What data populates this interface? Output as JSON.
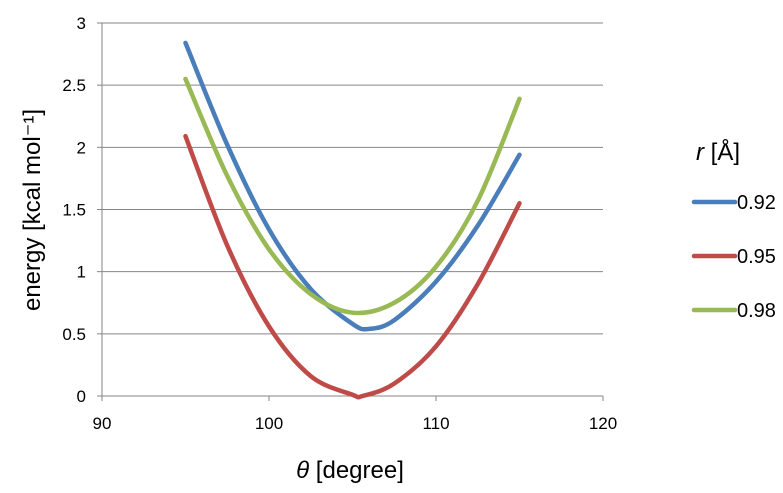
{
  "chart_data": {
    "type": "line",
    "title": "",
    "xlabel": {
      "symbol": "θ",
      "text": " [degree]"
    },
    "ylabel": "energy [kcal mol⁻¹]",
    "xlim": [
      90,
      120
    ],
    "ylim": [
      0,
      3
    ],
    "x_ticks": [
      90,
      100,
      110,
      120
    ],
    "y_ticks": [
      "0",
      "0.5",
      "1",
      "1.5",
      "2",
      "2.5",
      "3"
    ],
    "y_tick_values": [
      0,
      0.5,
      1,
      1.5,
      2,
      2.5,
      3
    ],
    "grid": "horizontal",
    "legend": {
      "title_symbol": "r",
      "title_unit": " [Å]",
      "placement": "right"
    },
    "series": [
      {
        "name": "0.92",
        "color": "#4a7ebb",
        "x": [
          95,
          97.5,
          100,
          102.5,
          105,
          106,
          107.5,
          110,
          112.5,
          115
        ],
        "y": [
          2.84,
          2.02,
          1.34,
          0.86,
          0.58,
          0.54,
          0.61,
          0.92,
          1.37,
          1.94
        ]
      },
      {
        "name": "0.95",
        "color": "#be4b48",
        "x": [
          95,
          97.5,
          100,
          102.5,
          105,
          105.6,
          107.5,
          110,
          112.5,
          115
        ],
        "y": [
          2.09,
          1.21,
          0.56,
          0.16,
          0.01,
          0.0,
          0.1,
          0.4,
          0.9,
          1.55
        ]
      },
      {
        "name": "0.98",
        "color": "#98b954",
        "x": [
          95,
          97.5,
          100,
          102.5,
          105,
          107.5,
          110,
          112.5,
          115
        ],
        "y": [
          2.55,
          1.77,
          1.18,
          0.82,
          0.67,
          0.75,
          1.04,
          1.57,
          2.39
        ]
      }
    ]
  }
}
